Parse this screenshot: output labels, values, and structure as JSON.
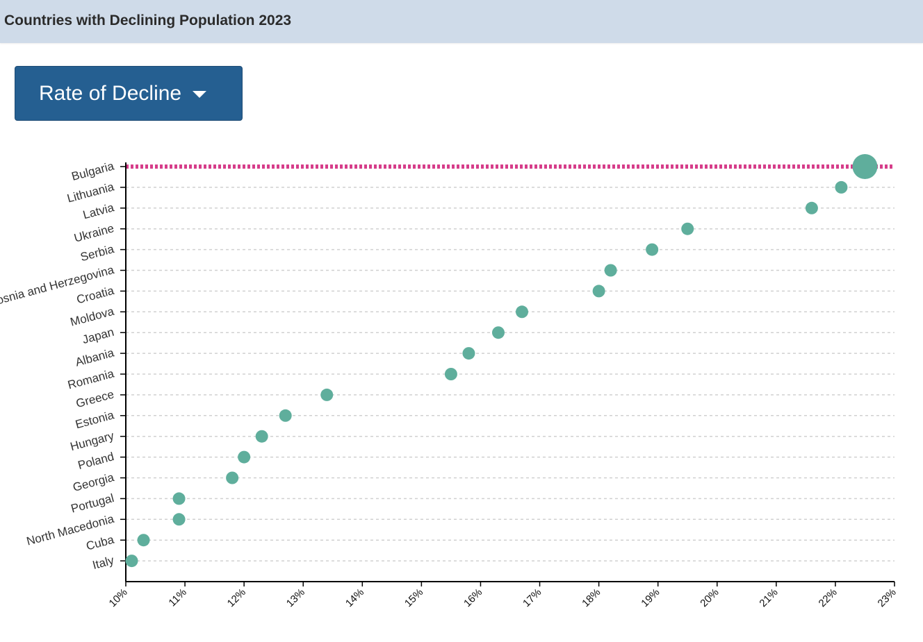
{
  "header": {
    "title": "Countries with Declining Population 2023"
  },
  "controls": {
    "metric_dropdown_label": "Rate of Decline",
    "metric_dropdown_icon": "caret-down-icon"
  },
  "colors": {
    "header_background": "#cfdbe9",
    "dropdown_background": "#255f91",
    "point_color": "#5fae9c",
    "highlight_line": "#d63d8a",
    "grid_line": "#d0d0d0"
  },
  "chart_data": {
    "type": "scatter",
    "x_format": "percent",
    "xlim": [
      10,
      23
    ],
    "x_ticks": [
      "10%",
      "11%",
      "12%",
      "13%",
      "14%",
      "15%",
      "16%",
      "17%",
      "18%",
      "19%",
      "20%",
      "21%",
      "22%",
      "23%"
    ],
    "categories": [
      "Bulgaria",
      "Lithuania",
      "Latvia",
      "Ukraine",
      "Serbia",
      "Bosnia and Herzegovina",
      "Croatia",
      "Moldova",
      "Japan",
      "Albania",
      "Romania",
      "Greece",
      "Estonia",
      "Hungary",
      "Poland",
      "Georgia",
      "Portugal",
      "North Macedonia",
      "Cuba",
      "Italy"
    ],
    "values": [
      22.5,
      22.1,
      21.6,
      19.5,
      18.9,
      18.2,
      18.0,
      16.7,
      16.3,
      15.8,
      15.5,
      13.4,
      12.7,
      12.3,
      12.0,
      11.8,
      10.9,
      10.9,
      10.3,
      10.1
    ],
    "highlighted_category": "Bulgaria",
    "grid": "horizontal-dashed",
    "legend": "none"
  }
}
